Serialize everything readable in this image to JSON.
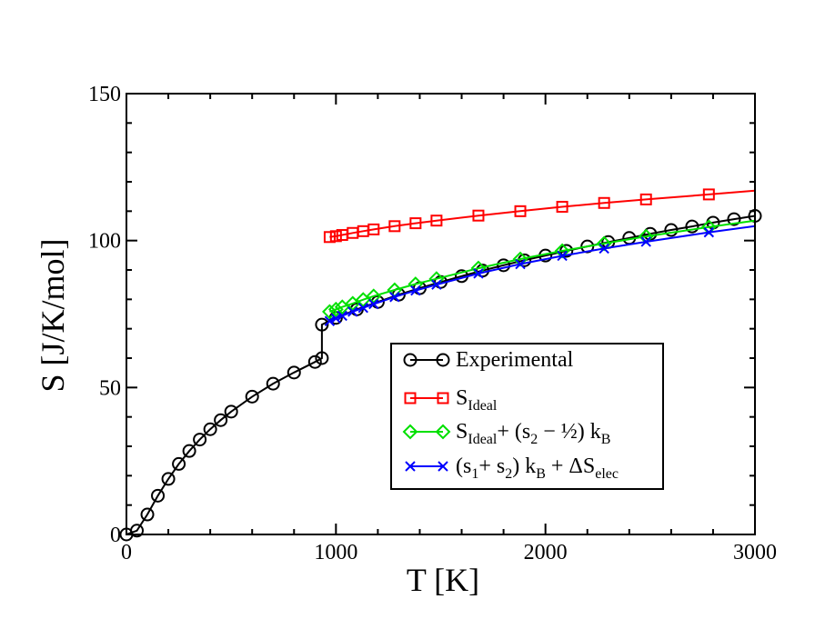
{
  "chart_data": {
    "type": "line",
    "title": "",
    "xlabel": "T  [K]",
    "ylabel": "S  [J/K/mol]",
    "xlim": [
      0,
      3000
    ],
    "ylim": [
      0,
      150
    ],
    "xticks": [
      0,
      1000,
      2000,
      3000
    ],
    "yticks": [
      0,
      50,
      100,
      150
    ],
    "legend_position": "lower-right",
    "series": [
      {
        "name": "Experimental",
        "color": "#000000",
        "marker": "circle",
        "x": [
          0,
          50,
          100,
          150,
          200,
          250,
          300,
          350,
          400,
          450,
          500,
          600,
          700,
          800,
          900,
          933,
          933,
          1000,
          1100,
          1200,
          1300,
          1400,
          1500,
          1600,
          1700,
          1800,
          1900,
          2000,
          2100,
          2200,
          2300,
          2400,
          2500,
          2600,
          2700,
          2800,
          2900,
          3000
        ],
        "y": [
          0,
          1.3,
          6.8,
          13.2,
          18.9,
          24.0,
          28.4,
          32.3,
          35.8,
          38.9,
          41.8,
          46.9,
          51.3,
          55.1,
          58.7,
          60.0,
          71.4,
          73.7,
          76.6,
          79.1,
          81.6,
          83.8,
          85.9,
          87.9,
          89.8,
          91.6,
          93.3,
          94.9,
          96.5,
          98.0,
          99.5,
          100.9,
          102.3,
          103.6,
          104.8,
          106.1,
          107.3,
          108.4
        ]
      },
      {
        "name": "S_Ideal",
        "color": "#ff0000",
        "marker": "square",
        "x": [
          970,
          1000,
          1030,
          1080,
          1130,
          1180,
          1280,
          1380,
          1480,
          1680,
          1880,
          2080,
          2280,
          2480,
          2780,
          3000
        ],
        "y": [
          101.2,
          101.5,
          101.9,
          102.6,
          103.2,
          103.8,
          104.9,
          105.9,
          106.8,
          108.5,
          110.0,
          111.5,
          112.8,
          114.0,
          115.7,
          117.0
        ]
      },
      {
        "name": "S_Ideal + (s2 - 1/2) kB",
        "color": "#00e000",
        "marker": "diamond",
        "x": [
          970,
          1000,
          1030,
          1080,
          1130,
          1180,
          1280,
          1380,
          1480,
          1680,
          1880,
          2080,
          2280,
          2480,
          2780,
          3000
        ],
        "y": [
          75.8,
          76.6,
          77.4,
          78.6,
          79.9,
          81.1,
          83.2,
          85.2,
          87.0,
          90.6,
          93.7,
          96.5,
          99.0,
          101.4,
          104.6,
          106.8
        ]
      },
      {
        "name": "(s1 + s2) kB + ΔS_elec",
        "color": "#0000ff",
        "marker": "x",
        "x": [
          970,
          1000,
          1030,
          1080,
          1130,
          1180,
          1280,
          1380,
          1480,
          1680,
          1880,
          2080,
          2280,
          2480,
          2780,
          3000
        ],
        "y": [
          72.6,
          73.5,
          74.4,
          75.8,
          77.1,
          78.4,
          80.8,
          83.0,
          85.0,
          88.8,
          92.0,
          94.8,
          97.3,
          99.6,
          102.8,
          104.9
        ]
      }
    ]
  },
  "legend": {
    "entries": [
      {
        "main": "Experimental"
      },
      {
        "main": "S",
        "sub": "Ideal"
      },
      {
        "main": "S",
        "sub": "Ideal",
        "rest": "+ (s",
        "sub2": "2",
        "rest2": " − ½) k",
        "sub3": "B"
      },
      {
        "main": "(s",
        "sub": "1",
        "rest": "+ s",
        "sub2": "2",
        "rest2": ") k",
        "sub3": "B",
        "rest3": " + ΔS",
        "sub4": "elec"
      }
    ]
  }
}
